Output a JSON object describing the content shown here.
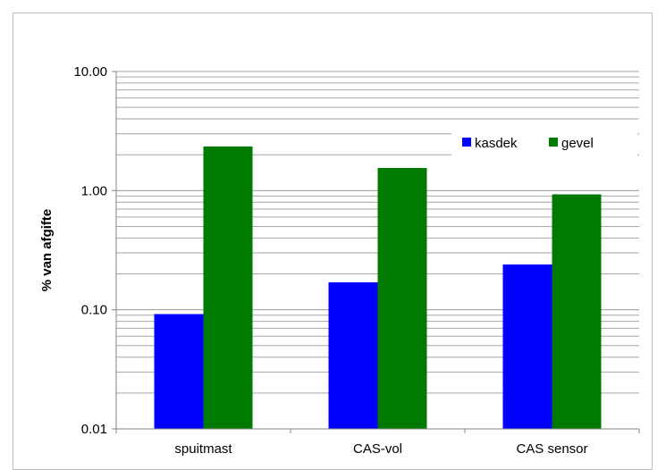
{
  "chart_data": {
    "type": "bar",
    "y_scale": "log",
    "categories": [
      "spuitmast",
      "CAS-vol",
      "CAS sensor"
    ],
    "series": [
      {
        "name": "kasdek",
        "color": "#0000ff",
        "values": [
          0.092,
          0.17,
          0.24
        ]
      },
      {
        "name": "gevel",
        "color": "#007a00",
        "values": [
          2.35,
          1.55,
          0.93
        ]
      }
    ],
    "ylabel": "% van afgifte",
    "xlabel": "",
    "ylim": [
      0.01,
      10
    ],
    "y_ticks": [
      {
        "value": 10,
        "label": "10.00"
      },
      {
        "value": 1,
        "label": "1.00"
      },
      {
        "value": 0.1,
        "label": "0.10"
      },
      {
        "value": 0.01,
        "label": "0.01"
      }
    ],
    "grid": "major and minor horizontal",
    "legend_position": "top-right"
  }
}
